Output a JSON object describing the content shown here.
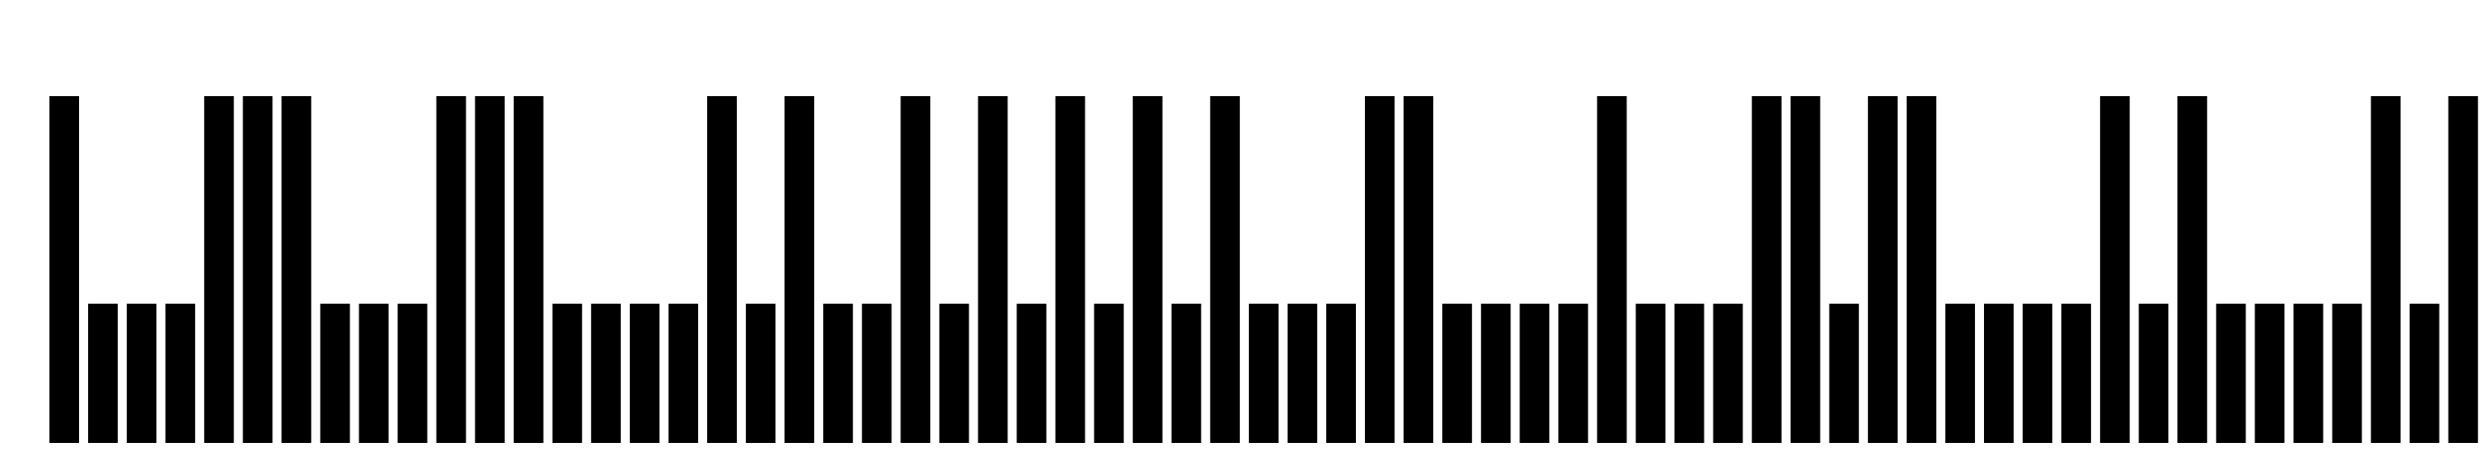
{
  "barcode": {
    "symbology": "POSTNET",
    "bar_color": "#000000",
    "background": "#ffffff",
    "bars": "1000111000111000010100101010101000110000100011011000010100001010001110001011"
  }
}
